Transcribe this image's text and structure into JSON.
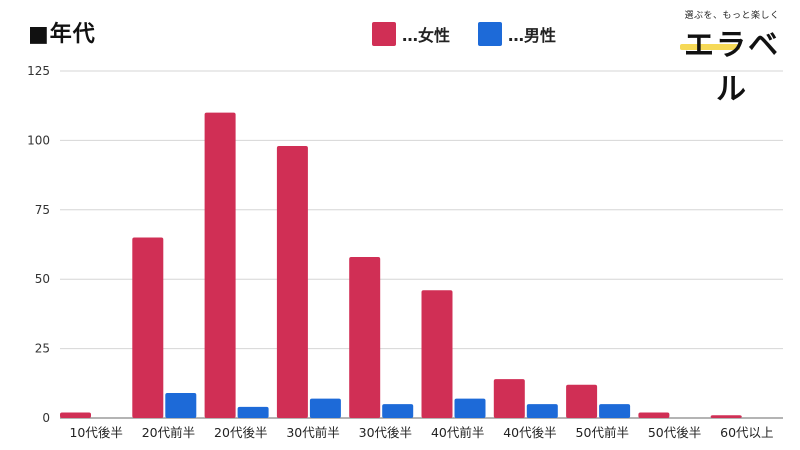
{
  "title": "■年代",
  "legend": {
    "female": {
      "label": "…女性",
      "color": "#d02f55"
    },
    "male": {
      "label": "…男性",
      "color": "#1d6ad8"
    }
  },
  "logo": {
    "tagline": "選ぶを、もっと楽しく",
    "name": "エラベル"
  },
  "chart_data": {
    "type": "bar",
    "categories": [
      "10代後半",
      "20代前半",
      "20代後半",
      "30代前半",
      "30代後半",
      "40代前半",
      "40代後半",
      "50代前半",
      "50代後半",
      "60代以上"
    ],
    "series": [
      {
        "name": "…女性",
        "color": "#d02f55",
        "values": [
          2,
          65,
          110,
          98,
          58,
          46,
          14,
          12,
          2,
          1
        ]
      },
      {
        "name": "…男性",
        "color": "#1d6ad8",
        "values": [
          0,
          9,
          4,
          7,
          5,
          7,
          5,
          5,
          0,
          0
        ]
      }
    ],
    "y_ticks": [
      0,
      25,
      50,
      75,
      100,
      125
    ],
    "ylim": [
      0,
      125
    ],
    "grid": true,
    "legend_position": "top-center"
  }
}
